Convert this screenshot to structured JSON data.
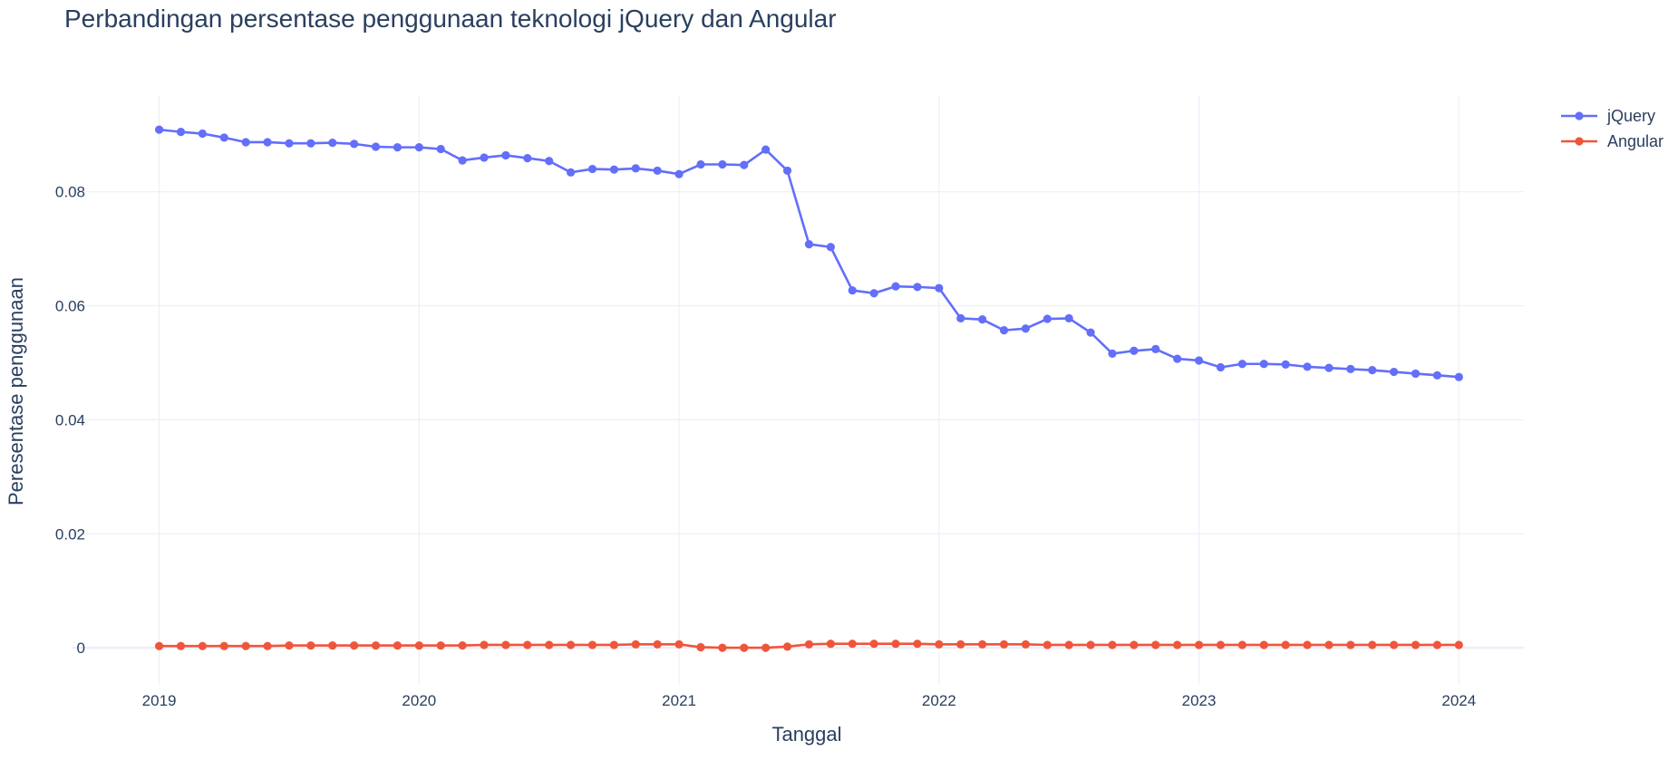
{
  "chart_data": {
    "type": "line",
    "title": "Perbandingan persentase penggunaan teknologi jQuery dan Angular",
    "xlabel": "Tanggal",
    "ylabel": "Peresentase penggunaan",
    "x_tick_labels": [
      "2019",
      "2020",
      "2021",
      "2022",
      "2023",
      "2024"
    ],
    "y_tick_labels": [
      "0",
      "0.02",
      "0.04",
      "0.06",
      "0.08"
    ],
    "x_range": [
      "2018-09-01",
      "2024-04-01"
    ],
    "ylim": [
      -0.0065,
      0.0968
    ],
    "grid": true,
    "legend_position": "top-right",
    "x": [
      "2019-01",
      "2019-02",
      "2019-03",
      "2019-04",
      "2019-05",
      "2019-06",
      "2019-07",
      "2019-08",
      "2019-09",
      "2019-10",
      "2019-11",
      "2019-12",
      "2020-01",
      "2020-02",
      "2020-03",
      "2020-04",
      "2020-05",
      "2020-06",
      "2020-07",
      "2020-08",
      "2020-09",
      "2020-10",
      "2020-11",
      "2020-12",
      "2021-01",
      "2021-02",
      "2021-03",
      "2021-04",
      "2021-05",
      "2021-06",
      "2021-07",
      "2021-08",
      "2021-09",
      "2021-10",
      "2021-11",
      "2021-12",
      "2022-01",
      "2022-02",
      "2022-03",
      "2022-04",
      "2022-05",
      "2022-06",
      "2022-07",
      "2022-08",
      "2022-09",
      "2022-10",
      "2022-11",
      "2022-12",
      "2023-01",
      "2023-02",
      "2023-03",
      "2023-04",
      "2023-05",
      "2023-06",
      "2023-07",
      "2023-08",
      "2023-09",
      "2023-10",
      "2023-11",
      "2023-12",
      "2024-01"
    ],
    "series": [
      {
        "name": "jQuery",
        "color": "#636efa",
        "values": [
          0.0909,
          0.0905,
          0.0902,
          0.0895,
          0.0887,
          0.0887,
          0.0885,
          0.0885,
          0.0886,
          0.0884,
          0.0879,
          0.0878,
          0.0878,
          0.0875,
          0.0855,
          0.086,
          0.0864,
          0.0859,
          0.0854,
          0.0834,
          0.084,
          0.0839,
          0.0841,
          0.0837,
          0.0831,
          0.0848,
          0.0848,
          0.0847,
          0.0874,
          0.0837,
          0.0708,
          0.0703,
          0.0627,
          0.0622,
          0.0634,
          0.0633,
          0.0631,
          0.0578,
          0.0576,
          0.0557,
          0.056,
          0.0577,
          0.0578,
          0.0553,
          0.0516,
          0.0521,
          0.0524,
          0.0507,
          0.0504,
          0.0492,
          0.0498,
          0.0498,
          0.0497,
          0.0493,
          0.0491,
          0.0489,
          0.0487,
          0.0484,
          0.0481,
          0.0478,
          0.0475
        ]
      },
      {
        "name": "Angular",
        "color": "#ef553b",
        "values": [
          0.0003,
          0.0003,
          0.0003,
          0.0003,
          0.0003,
          0.0003,
          0.0004,
          0.0004,
          0.0004,
          0.0004,
          0.0004,
          0.0004,
          0.0004,
          0.0004,
          0.0004,
          0.0005,
          0.0005,
          0.0005,
          0.0005,
          0.0005,
          0.0005,
          0.0005,
          0.0006,
          0.0006,
          0.0006,
          0.0001,
          0.0,
          0.0,
          0.0,
          0.0002,
          0.0006,
          0.0007,
          0.0007,
          0.0007,
          0.0007,
          0.0007,
          0.0006,
          0.0006,
          0.0006,
          0.0006,
          0.0006,
          0.0005,
          0.0005,
          0.0005,
          0.0005,
          0.0005,
          0.0005,
          0.0005,
          0.0005,
          0.0005,
          0.0005,
          0.0005,
          0.0005,
          0.0005,
          0.0005,
          0.0005,
          0.0005,
          0.0005,
          0.0005,
          0.0005,
          0.0005
        ]
      }
    ]
  }
}
